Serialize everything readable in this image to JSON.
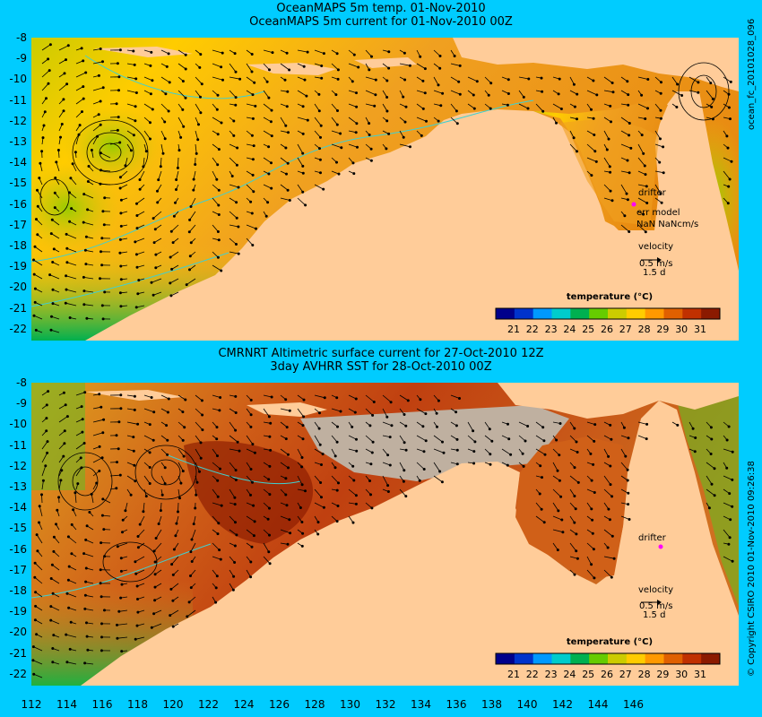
{
  "top_panel": {
    "title_line1": "OceanMAPS 5m temp. 01-Nov-2010",
    "title_line2": "OceanMAPS 5m current for 01-Nov-2010 00Z",
    "side_label": "ocean_fc_20101028_096",
    "drifter_label": "drifter",
    "err_model_label": "err model",
    "err_model_value": "NaN NaNcm/s",
    "velocity_label": "velocity",
    "velocity_scale": "0.5 m/s",
    "velocity_days": "1.5 d",
    "legend_title": "temperature (°C)",
    "colorbar_ticks": [
      "21",
      "22",
      "23",
      "24",
      "25",
      "26",
      "27",
      "28",
      "29",
      "30",
      "31"
    ]
  },
  "bottom_panel": {
    "title_line1": "CMRNRT Altimetric surface current for 27-Oct-2010 12Z",
    "title_line2": "3day AVHRR SST for 28-Oct-2010 00Z",
    "side_label": "© Copyright CSIRO 2010   01-Nov-2010 09:26:38",
    "drifter_label": "drifter",
    "velocity_label": "velocity",
    "velocity_scale": "0.5 m/s",
    "velocity_days": "1.5 d",
    "legend_title": "temperature (°C)",
    "colorbar_ticks": [
      "21",
      "22",
      "23",
      "24",
      "25",
      "26",
      "27",
      "28",
      "29",
      "30",
      "31"
    ]
  },
  "y_ticks": [
    "-8",
    "-9",
    "-10",
    "-11",
    "-12",
    "-13",
    "-14",
    "-15",
    "-16",
    "-17",
    "-18",
    "-19",
    "-20",
    "-21",
    "-22"
  ],
  "x_ticks": [
    "112",
    "114",
    "116",
    "118",
    "120",
    "122",
    "124",
    "126",
    "128",
    "130",
    "132",
    "134",
    "136",
    "138",
    "140",
    "142",
    "144",
    "146"
  ],
  "colors": {
    "background": "#00ccff",
    "land": "#ffcc99",
    "no_data": "#bfb0a0",
    "coast": "#40d0d0",
    "drifter": "#ff00ff"
  },
  "colorbar_colors": [
    "#00008b",
    "#0033cc",
    "#0099ff",
    "#00cccc",
    "#00b050",
    "#66cc00",
    "#cccc00",
    "#ffcc00",
    "#ff9900",
    "#e06000",
    "#c03000",
    "#8b1a00"
  ]
}
